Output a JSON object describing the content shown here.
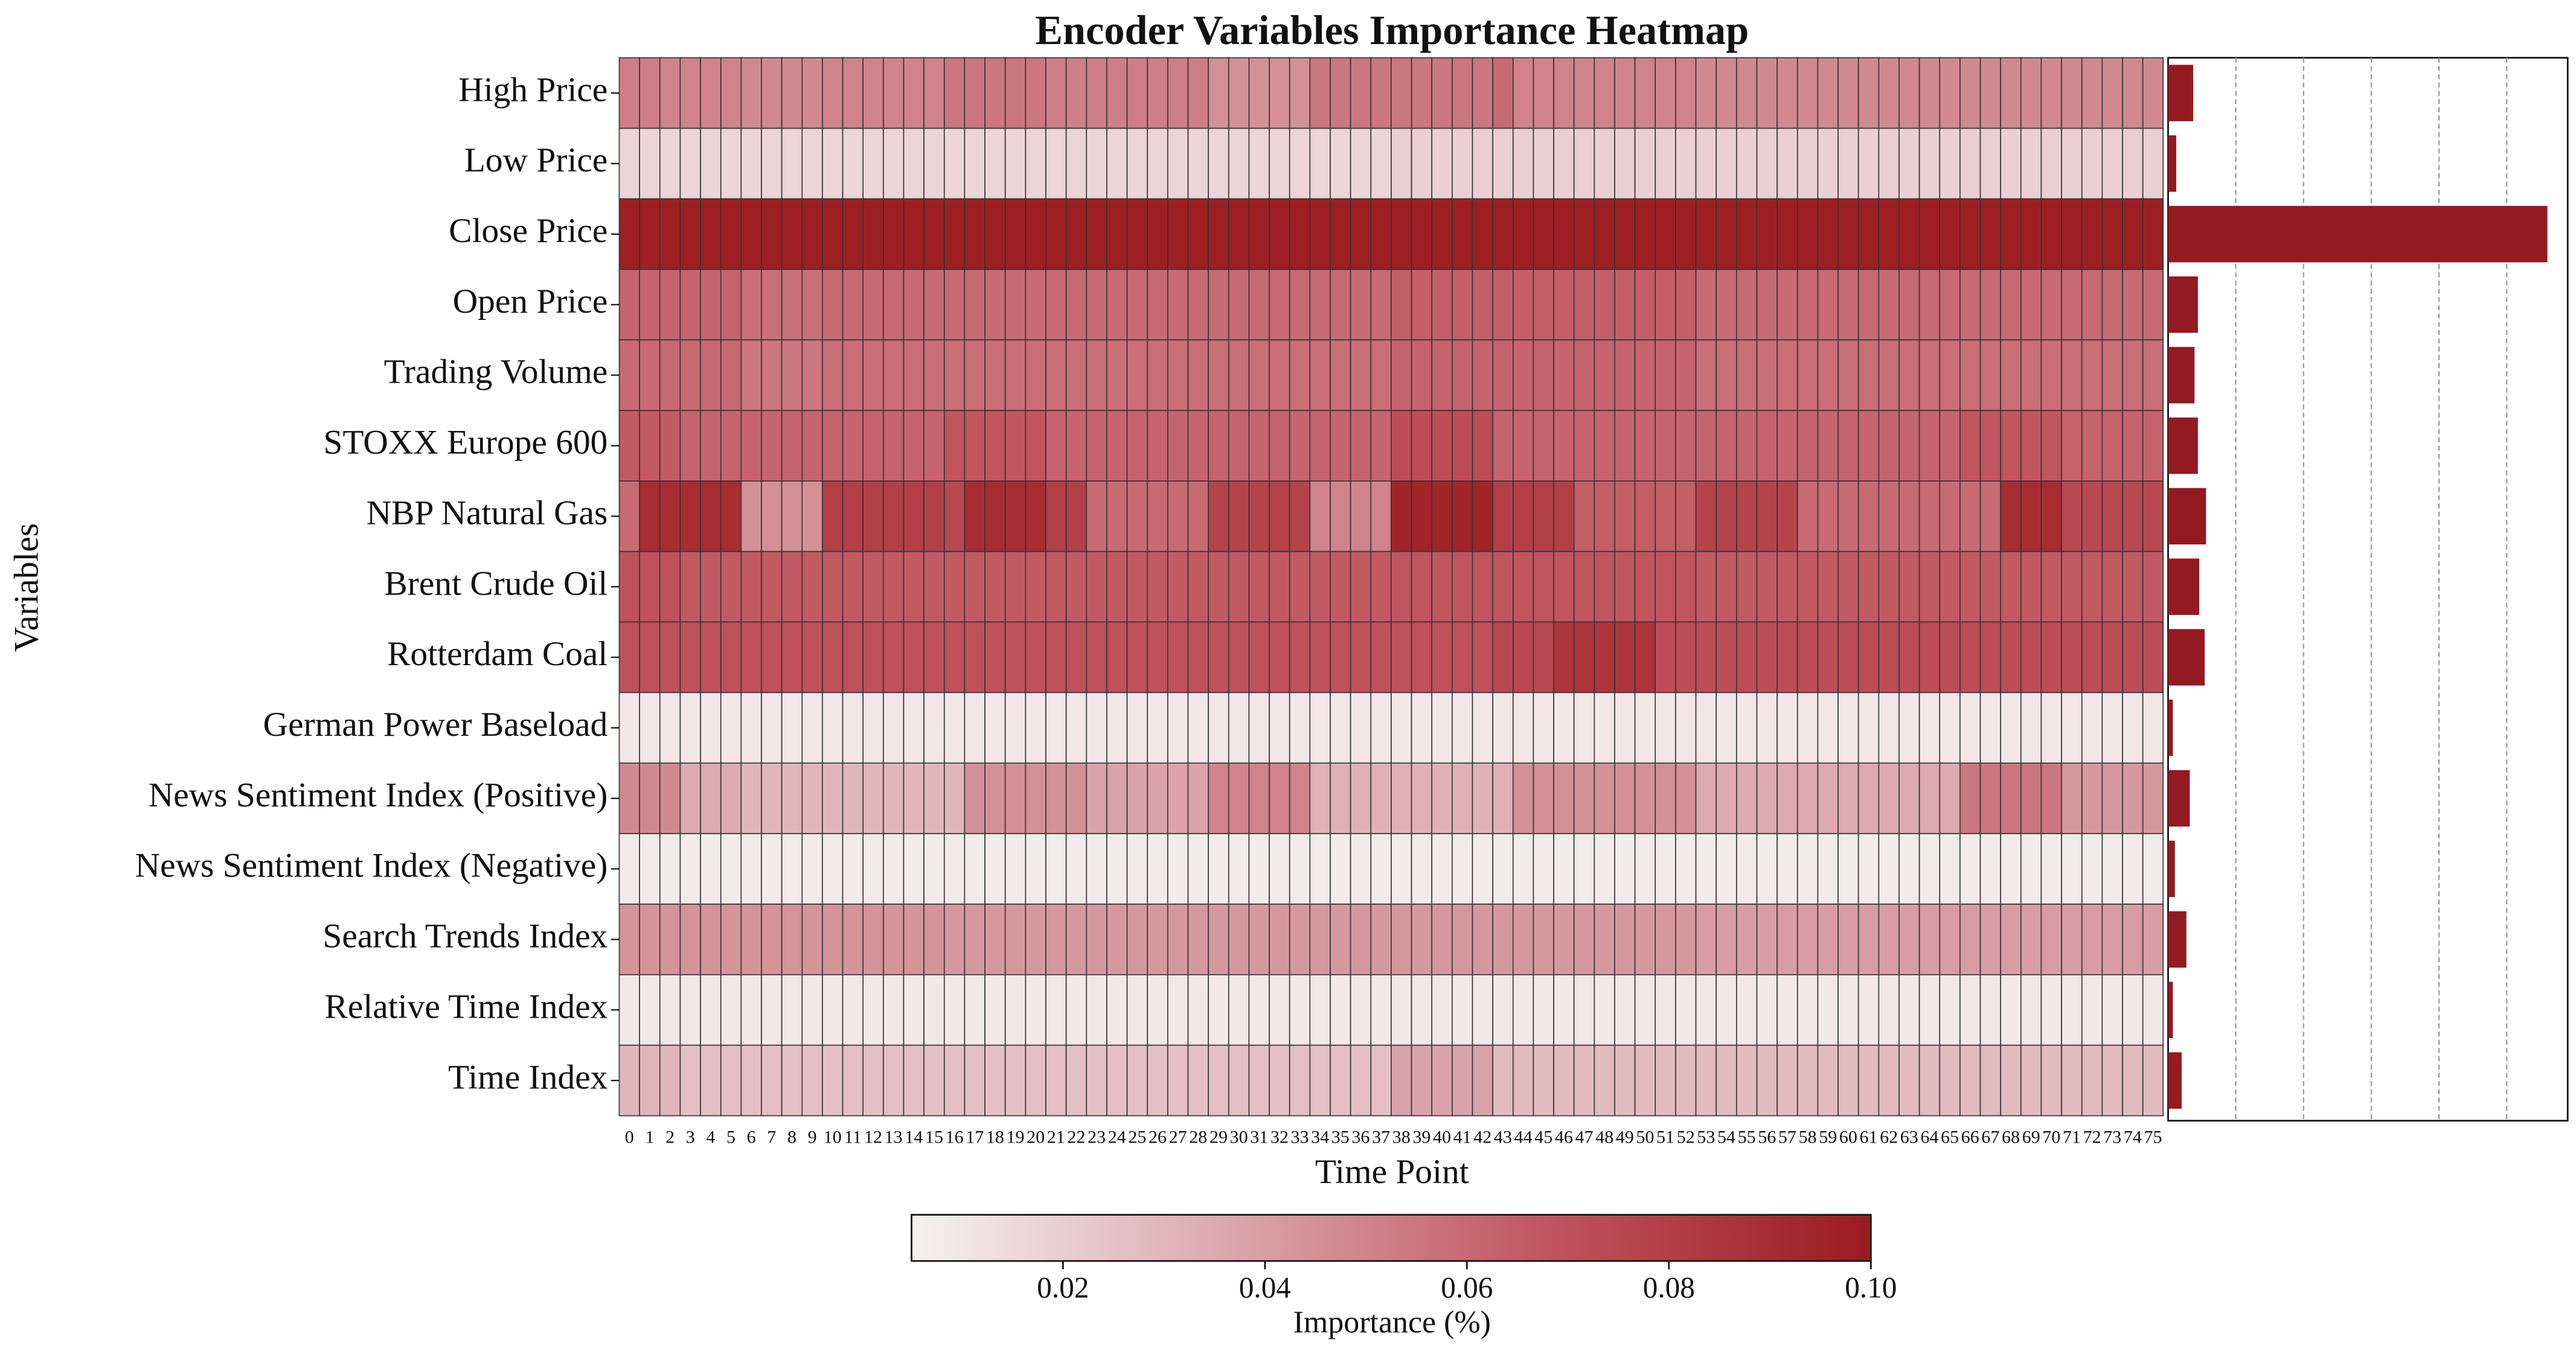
{
  "chart_data": {
    "type": "heatmap",
    "title": "Encoder Variables Importance Heatmap",
    "x_label": "Time Point",
    "y_label": "Variables",
    "colorbar_label": "Importance (%)",
    "clim": [
      0.005,
      0.1
    ],
    "colorbar_ticks": [
      0.02,
      0.04,
      0.06,
      0.08,
      {
        "value": 0.1,
        "label": "0.10"
      }
    ],
    "cmap": [
      "#f6f2f2",
      "#dba6ac",
      "#c0545e",
      "#9b1b1f"
    ],
    "categories": [
      "0",
      "1",
      "2",
      "3",
      "4",
      "5",
      "6",
      "7",
      "8",
      "9",
      "10",
      "11",
      "12",
      "13",
      "14",
      "15",
      "16",
      "17",
      "18",
      "19",
      "20",
      "21",
      "22",
      "23",
      "24",
      "25",
      "26",
      "27",
      "28",
      "29",
      "30",
      "31",
      "32",
      "33",
      "34",
      "35",
      "36",
      "37",
      "38",
      "39",
      "40",
      "41",
      "42",
      "43",
      "44",
      "45",
      "46",
      "47",
      "48",
      "49",
      "50",
      "51",
      "52",
      "53",
      "54",
      "55",
      "56",
      "57",
      "58",
      "59",
      "60",
      "61",
      "62",
      "63",
      "64",
      "65",
      "66",
      "67",
      "68",
      "69",
      "70",
      "71",
      "72",
      "73",
      "74",
      "75"
    ],
    "rows": [
      "High Price",
      "Low Price",
      "Close Price",
      "Open Price",
      "Trading Volume",
      "STOXX Europe 600",
      "NBP Natural Gas",
      "Brent Crude Oil",
      "Rotterdam Coal",
      "German Power Baseload",
      "News Sentiment Index (Positive)",
      "News Sentiment Index (Negative)",
      "Search Trends Index",
      "Relative Time Index",
      "Time Index"
    ],
    "values": [
      [
        0.052,
        0.052,
        0.05,
        0.05,
        0.05,
        0.05,
        0.048,
        0.048,
        0.048,
        0.048,
        0.05,
        0.05,
        0.05,
        0.05,
        0.05,
        0.05,
        0.055,
        0.055,
        0.055,
        0.055,
        0.055,
        0.052,
        0.052,
        0.052,
        0.052,
        0.052,
        0.052,
        0.052,
        0.052,
        0.045,
        0.045,
        0.045,
        0.045,
        0.045,
        0.055,
        0.055,
        0.055,
        0.055,
        0.055,
        0.055,
        0.055,
        0.055,
        0.055,
        0.06,
        0.05,
        0.05,
        0.05,
        0.05,
        0.05,
        0.05,
        0.05,
        0.05,
        0.05,
        0.048,
        0.048,
        0.048,
        0.048,
        0.048,
        0.048,
        0.048,
        0.048,
        0.048,
        0.048,
        0.048,
        0.048,
        0.048,
        0.048,
        0.048,
        0.048,
        0.048,
        0.048,
        0.048,
        0.048,
        0.048,
        0.048,
        0.048
      ],
      [
        0.017,
        0.017,
        0.017,
        0.017,
        0.017,
        0.017,
        0.017,
        0.017,
        0.017,
        0.017,
        0.017,
        0.017,
        0.017,
        0.017,
        0.017,
        0.017,
        0.017,
        0.017,
        0.017,
        0.017,
        0.017,
        0.017,
        0.017,
        0.017,
        0.017,
        0.017,
        0.017,
        0.017,
        0.017,
        0.017,
        0.017,
        0.017,
        0.017,
        0.017,
        0.017,
        0.017,
        0.017,
        0.017,
        0.019,
        0.019,
        0.019,
        0.019,
        0.019,
        0.019,
        0.019,
        0.019,
        0.019,
        0.019,
        0.019,
        0.019,
        0.019,
        0.019,
        0.019,
        0.019,
        0.019,
        0.019,
        0.019,
        0.019,
        0.019,
        0.019,
        0.019,
        0.019,
        0.019,
        0.019,
        0.019,
        0.019,
        0.019,
        0.019,
        0.019,
        0.019,
        0.019,
        0.019,
        0.019,
        0.019,
        0.019,
        0.019
      ],
      [
        0.098,
        0.098,
        0.098,
        0.098,
        0.098,
        0.098,
        0.098,
        0.098,
        0.098,
        0.098,
        0.098,
        0.098,
        0.098,
        0.098,
        0.098,
        0.098,
        0.098,
        0.098,
        0.098,
        0.098,
        0.098,
        0.098,
        0.098,
        0.098,
        0.098,
        0.098,
        0.098,
        0.098,
        0.098,
        0.098,
        0.098,
        0.098,
        0.098,
        0.098,
        0.098,
        0.098,
        0.098,
        0.098,
        0.098,
        0.098,
        0.098,
        0.098,
        0.098,
        0.098,
        0.098,
        0.098,
        0.098,
        0.098,
        0.098,
        0.098,
        0.098,
        0.098,
        0.098,
        0.098,
        0.098,
        0.098,
        0.098,
        0.098,
        0.098,
        0.098,
        0.098,
        0.098,
        0.098,
        0.098,
        0.098,
        0.098,
        0.098,
        0.098,
        0.098,
        0.098,
        0.098,
        0.098,
        0.098,
        0.098,
        0.098,
        0.098
      ],
      [
        0.062,
        0.062,
        0.062,
        0.062,
        0.062,
        0.062,
        0.058,
        0.058,
        0.058,
        0.058,
        0.06,
        0.06,
        0.06,
        0.06,
        0.06,
        0.06,
        0.06,
        0.06,
        0.06,
        0.06,
        0.06,
        0.06,
        0.06,
        0.06,
        0.06,
        0.06,
        0.06,
        0.06,
        0.06,
        0.06,
        0.06,
        0.06,
        0.06,
        0.06,
        0.06,
        0.06,
        0.06,
        0.06,
        0.064,
        0.064,
        0.064,
        0.064,
        0.064,
        0.064,
        0.064,
        0.064,
        0.064,
        0.064,
        0.064,
        0.064,
        0.064,
        0.064,
        0.064,
        0.06,
        0.06,
        0.06,
        0.06,
        0.06,
        0.06,
        0.06,
        0.06,
        0.06,
        0.06,
        0.06,
        0.06,
        0.06,
        0.06,
        0.06,
        0.06,
        0.06,
        0.06,
        0.06,
        0.06,
        0.06,
        0.06,
        0.06
      ],
      [
        0.06,
        0.06,
        0.06,
        0.06,
        0.06,
        0.06,
        0.055,
        0.055,
        0.055,
        0.055,
        0.058,
        0.058,
        0.058,
        0.058,
        0.058,
        0.058,
        0.058,
        0.058,
        0.058,
        0.058,
        0.058,
        0.058,
        0.058,
        0.058,
        0.058,
        0.058,
        0.058,
        0.058,
        0.058,
        0.058,
        0.058,
        0.058,
        0.058,
        0.058,
        0.058,
        0.058,
        0.058,
        0.058,
        0.062,
        0.062,
        0.062,
        0.062,
        0.062,
        0.062,
        0.062,
        0.062,
        0.062,
        0.062,
        0.062,
        0.062,
        0.062,
        0.062,
        0.062,
        0.058,
        0.058,
        0.058,
        0.058,
        0.058,
        0.058,
        0.058,
        0.058,
        0.058,
        0.058,
        0.058,
        0.058,
        0.058,
        0.058,
        0.058,
        0.058,
        0.058,
        0.058,
        0.058,
        0.058,
        0.058,
        0.058,
        0.058
      ],
      [
        0.066,
        0.066,
        0.066,
        0.062,
        0.062,
        0.062,
        0.062,
        0.062,
        0.062,
        0.062,
        0.062,
        0.062,
        0.062,
        0.062,
        0.062,
        0.062,
        0.068,
        0.068,
        0.068,
        0.068,
        0.068,
        0.062,
        0.062,
        0.062,
        0.062,
        0.062,
        0.062,
        0.062,
        0.062,
        0.062,
        0.062,
        0.062,
        0.062,
        0.062,
        0.062,
        0.062,
        0.062,
        0.062,
        0.072,
        0.072,
        0.072,
        0.072,
        0.072,
        0.062,
        0.062,
        0.062,
        0.062,
        0.062,
        0.062,
        0.062,
        0.062,
        0.062,
        0.062,
        0.062,
        0.062,
        0.062,
        0.062,
        0.062,
        0.062,
        0.062,
        0.062,
        0.062,
        0.062,
        0.062,
        0.062,
        0.062,
        0.068,
        0.068,
        0.068,
        0.068,
        0.068,
        0.063,
        0.063,
        0.063,
        0.063,
        0.063
      ],
      [
        0.06,
        0.09,
        0.09,
        0.09,
        0.09,
        0.09,
        0.045,
        0.045,
        0.045,
        0.045,
        0.08,
        0.08,
        0.08,
        0.08,
        0.08,
        0.08,
        0.075,
        0.09,
        0.09,
        0.09,
        0.09,
        0.08,
        0.08,
        0.06,
        0.06,
        0.06,
        0.06,
        0.06,
        0.06,
        0.078,
        0.078,
        0.078,
        0.078,
        0.078,
        0.05,
        0.05,
        0.05,
        0.05,
        0.095,
        0.095,
        0.095,
        0.095,
        0.095,
        0.08,
        0.08,
        0.08,
        0.08,
        0.065,
        0.065,
        0.065,
        0.065,
        0.065,
        0.065,
        0.078,
        0.078,
        0.078,
        0.078,
        0.078,
        0.06,
        0.06,
        0.06,
        0.06,
        0.06,
        0.06,
        0.06,
        0.06,
        0.06,
        0.06,
        0.09,
        0.09,
        0.09,
        0.075,
        0.075,
        0.075,
        0.075,
        0.075
      ],
      [
        0.07,
        0.07,
        0.07,
        0.066,
        0.066,
        0.066,
        0.066,
        0.066,
        0.066,
        0.066,
        0.066,
        0.066,
        0.066,
        0.066,
        0.066,
        0.066,
        0.066,
        0.066,
        0.066,
        0.066,
        0.066,
        0.066,
        0.066,
        0.066,
        0.066,
        0.066,
        0.066,
        0.066,
        0.066,
        0.066,
        0.066,
        0.066,
        0.066,
        0.066,
        0.066,
        0.066,
        0.066,
        0.066,
        0.068,
        0.068,
        0.068,
        0.068,
        0.068,
        0.068,
        0.068,
        0.068,
        0.068,
        0.068,
        0.068,
        0.068,
        0.068,
        0.068,
        0.068,
        0.066,
        0.066,
        0.066,
        0.066,
        0.066,
        0.066,
        0.066,
        0.066,
        0.066,
        0.066,
        0.066,
        0.066,
        0.066,
        0.066,
        0.066,
        0.066,
        0.066,
        0.066,
        0.066,
        0.066,
        0.066,
        0.066,
        0.066
      ],
      [
        0.07,
        0.07,
        0.07,
        0.07,
        0.07,
        0.07,
        0.07,
        0.07,
        0.07,
        0.07,
        0.07,
        0.07,
        0.07,
        0.07,
        0.07,
        0.07,
        0.07,
        0.07,
        0.07,
        0.07,
        0.07,
        0.07,
        0.07,
        0.07,
        0.07,
        0.07,
        0.07,
        0.07,
        0.07,
        0.07,
        0.07,
        0.07,
        0.07,
        0.07,
        0.07,
        0.07,
        0.07,
        0.07,
        0.07,
        0.07,
        0.07,
        0.07,
        0.07,
        0.075,
        0.075,
        0.075,
        0.085,
        0.085,
        0.085,
        0.085,
        0.085,
        0.072,
        0.072,
        0.072,
        0.072,
        0.072,
        0.072,
        0.072,
        0.072,
        0.072,
        0.072,
        0.072,
        0.072,
        0.072,
        0.072,
        0.072,
        0.072,
        0.072,
        0.072,
        0.072,
        0.072,
        0.072,
        0.072,
        0.072,
        0.072,
        0.072
      ],
      [
        0.01,
        0.01,
        0.01,
        0.01,
        0.01,
        0.01,
        0.01,
        0.01,
        0.01,
        0.01,
        0.01,
        0.01,
        0.01,
        0.01,
        0.01,
        0.01,
        0.01,
        0.01,
        0.01,
        0.01,
        0.01,
        0.01,
        0.01,
        0.01,
        0.01,
        0.01,
        0.01,
        0.01,
        0.01,
        0.01,
        0.01,
        0.01,
        0.01,
        0.01,
        0.01,
        0.01,
        0.01,
        0.01,
        0.01,
        0.01,
        0.01,
        0.01,
        0.01,
        0.01,
        0.01,
        0.01,
        0.01,
        0.01,
        0.01,
        0.01,
        0.01,
        0.01,
        0.01,
        0.01,
        0.01,
        0.01,
        0.01,
        0.01,
        0.01,
        0.01,
        0.01,
        0.01,
        0.01,
        0.01,
        0.01,
        0.01,
        0.01,
        0.01,
        0.01,
        0.01,
        0.01,
        0.01,
        0.01,
        0.01,
        0.01,
        0.01
      ],
      [
        0.048,
        0.048,
        0.048,
        0.035,
        0.035,
        0.035,
        0.03,
        0.03,
        0.03,
        0.03,
        0.03,
        0.03,
        0.03,
        0.03,
        0.03,
        0.03,
        0.03,
        0.045,
        0.045,
        0.045,
        0.045,
        0.045,
        0.045,
        0.038,
        0.038,
        0.038,
        0.038,
        0.038,
        0.038,
        0.05,
        0.05,
        0.05,
        0.05,
        0.05,
        0.032,
        0.032,
        0.032,
        0.032,
        0.032,
        0.032,
        0.032,
        0.032,
        0.032,
        0.032,
        0.045,
        0.045,
        0.045,
        0.045,
        0.045,
        0.045,
        0.045,
        0.045,
        0.045,
        0.035,
        0.035,
        0.035,
        0.035,
        0.035,
        0.035,
        0.035,
        0.035,
        0.035,
        0.035,
        0.035,
        0.035,
        0.035,
        0.055,
        0.055,
        0.055,
        0.055,
        0.055,
        0.042,
        0.042,
        0.042,
        0.042,
        0.042
      ],
      [
        0.008,
        0.008,
        0.008,
        0.008,
        0.008,
        0.008,
        0.008,
        0.008,
        0.008,
        0.008,
        0.008,
        0.008,
        0.008,
        0.008,
        0.008,
        0.008,
        0.008,
        0.008,
        0.008,
        0.008,
        0.008,
        0.008,
        0.008,
        0.008,
        0.008,
        0.008,
        0.008,
        0.008,
        0.008,
        0.008,
        0.008,
        0.008,
        0.008,
        0.008,
        0.008,
        0.008,
        0.008,
        0.008,
        0.008,
        0.008,
        0.008,
        0.008,
        0.008,
        0.008,
        0.008,
        0.008,
        0.008,
        0.008,
        0.008,
        0.008,
        0.008,
        0.008,
        0.008,
        0.008,
        0.008,
        0.008,
        0.008,
        0.008,
        0.008,
        0.008,
        0.008,
        0.008,
        0.008,
        0.008,
        0.008,
        0.008,
        0.008,
        0.008,
        0.008,
        0.008,
        0.008,
        0.008,
        0.008,
        0.008,
        0.008,
        0.008
      ],
      [
        0.044,
        0.044,
        0.044,
        0.044,
        0.044,
        0.044,
        0.044,
        0.044,
        0.044,
        0.044,
        0.044,
        0.044,
        0.044,
        0.044,
        0.044,
        0.044,
        0.042,
        0.042,
        0.042,
        0.042,
        0.042,
        0.042,
        0.042,
        0.042,
        0.042,
        0.042,
        0.042,
        0.042,
        0.042,
        0.042,
        0.042,
        0.042,
        0.042,
        0.042,
        0.042,
        0.042,
        0.042,
        0.042,
        0.042,
        0.042,
        0.042,
        0.042,
        0.042,
        0.042,
        0.042,
        0.042,
        0.042,
        0.042,
        0.042,
        0.042,
        0.042,
        0.042,
        0.042,
        0.04,
        0.04,
        0.04,
        0.04,
        0.04,
        0.04,
        0.04,
        0.04,
        0.04,
        0.04,
        0.04,
        0.04,
        0.04,
        0.04,
        0.04,
        0.04,
        0.04,
        0.04,
        0.04,
        0.04,
        0.04,
        0.04,
        0.04
      ],
      [
        0.009,
        0.009,
        0.009,
        0.009,
        0.009,
        0.009,
        0.009,
        0.009,
        0.009,
        0.009,
        0.009,
        0.009,
        0.009,
        0.009,
        0.009,
        0.009,
        0.009,
        0.009,
        0.009,
        0.009,
        0.009,
        0.009,
        0.009,
        0.009,
        0.009,
        0.009,
        0.009,
        0.009,
        0.009,
        0.009,
        0.009,
        0.009,
        0.009,
        0.009,
        0.009,
        0.009,
        0.009,
        0.009,
        0.009,
        0.009,
        0.009,
        0.009,
        0.009,
        0.009,
        0.009,
        0.009,
        0.009,
        0.009,
        0.009,
        0.009,
        0.009,
        0.009,
        0.009,
        0.009,
        0.009,
        0.009,
        0.009,
        0.009,
        0.009,
        0.009,
        0.009,
        0.009,
        0.009,
        0.009,
        0.009,
        0.009,
        0.009,
        0.009,
        0.009,
        0.009,
        0.009,
        0.009,
        0.009,
        0.009,
        0.009,
        0.009
      ],
      [
        0.03,
        0.03,
        0.03,
        0.026,
        0.026,
        0.026,
        0.026,
        0.026,
        0.026,
        0.026,
        0.026,
        0.026,
        0.026,
        0.026,
        0.026,
        0.026,
        0.026,
        0.026,
        0.026,
        0.026,
        0.026,
        0.026,
        0.026,
        0.026,
        0.026,
        0.026,
        0.026,
        0.026,
        0.026,
        0.026,
        0.026,
        0.026,
        0.026,
        0.026,
        0.026,
        0.026,
        0.026,
        0.026,
        0.038,
        0.038,
        0.038,
        0.038,
        0.038,
        0.028,
        0.028,
        0.028,
        0.028,
        0.028,
        0.028,
        0.028,
        0.028,
        0.028,
        0.028,
        0.028,
        0.028,
        0.028,
        0.028,
        0.028,
        0.028,
        0.028,
        0.028,
        0.028,
        0.028,
        0.028,
        0.028,
        0.028,
        0.028,
        0.028,
        0.028,
        0.028,
        0.028,
        0.028,
        0.028,
        0.028,
        0.028,
        0.028
      ]
    ],
    "bar": {
      "color": "#931a20",
      "values": [
        3.7,
        1.2,
        56,
        4.4,
        3.9,
        4.4,
        5.6,
        4.6,
        5.4,
        0.7,
        3.2,
        1,
        2.7,
        0.7,
        2
      ],
      "xlim": [
        0,
        59
      ],
      "xticks": [
        10,
        20,
        30,
        40,
        50
      ],
      "grid": true
    }
  }
}
